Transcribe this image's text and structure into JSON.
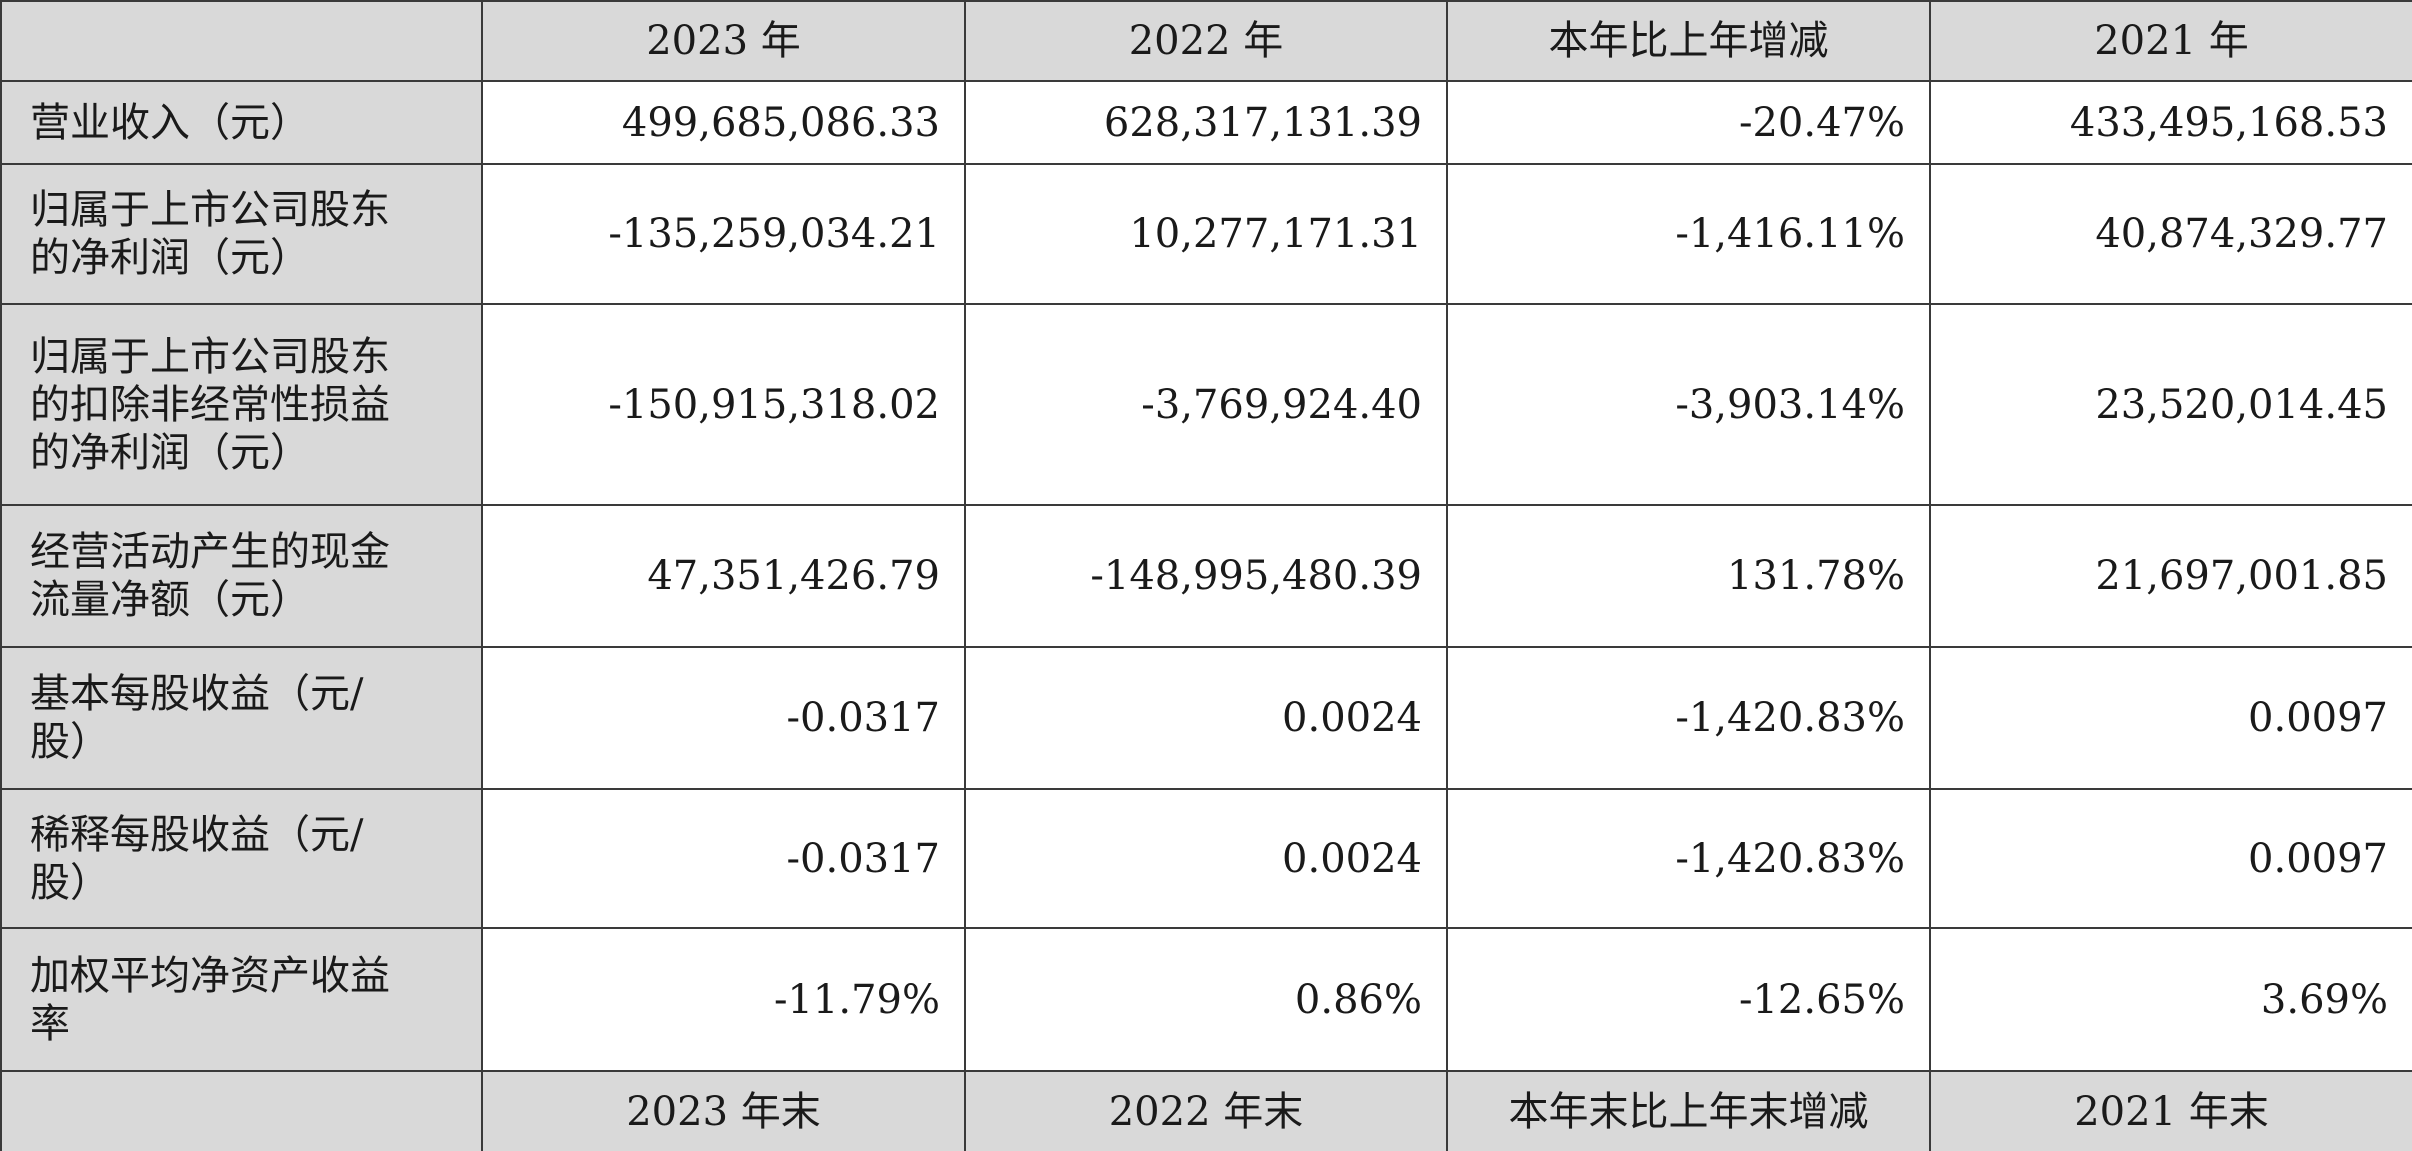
{
  "table": {
    "header": [
      "",
      "2023 年",
      "2022 年",
      "本年比上年增减",
      "2021 年"
    ],
    "rows": [
      {
        "label": [
          "营业收入（元）"
        ],
        "cells": [
          "499,685,086.33",
          "628,317,131.39",
          "-20.47%",
          "433,495,168.53"
        ]
      },
      {
        "label": [
          "归属于上市公司股东",
          "的净利润（元）"
        ],
        "cells": [
          "-135,259,034.21",
          "10,277,171.31",
          "-1,416.11%",
          "40,874,329.77"
        ]
      },
      {
        "label": [
          "归属于上市公司股东",
          "的扣除非经常性损益",
          "的净利润（元）"
        ],
        "cells": [
          "-150,915,318.02",
          "-3,769,924.40",
          "-3,903.14%",
          "23,520,014.45"
        ]
      },
      {
        "label": [
          "经营活动产生的现金",
          "流量净额（元）"
        ],
        "cells": [
          "47,351,426.79",
          "-148,995,480.39",
          "131.78%",
          "21,697,001.85"
        ]
      },
      {
        "label": [
          "基本每股收益（元/",
          "股）"
        ],
        "cells": [
          "-0.0317",
          "0.0024",
          "-1,420.83%",
          "0.0097"
        ]
      },
      {
        "label": [
          "稀释每股收益（元/",
          "股）"
        ],
        "cells": [
          "-0.0317",
          "0.0024",
          "-1,420.83%",
          "0.0097"
        ]
      },
      {
        "label": [
          "加权平均净资产收益",
          "率"
        ],
        "cells": [
          "-11.79%",
          "0.86%",
          "-12.65%",
          "3.69%"
        ]
      }
    ],
    "footer": [
      "",
      "2023 年末",
      "2022 年末",
      "本年末比上年末增减",
      "2021 年末"
    ]
  }
}
